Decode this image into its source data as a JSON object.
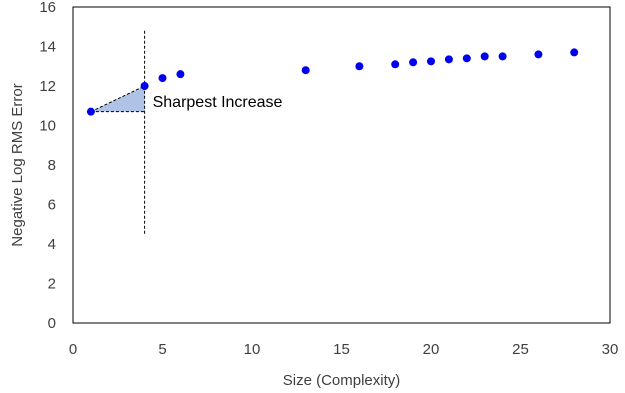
{
  "chart_data": {
    "type": "scatter",
    "xlabel": "Size (Complexity)",
    "ylabel": "Negative Log RMS Error",
    "xlim": [
      0,
      30
    ],
    "ylim": [
      0,
      16
    ],
    "xticks": [
      0,
      5,
      10,
      15,
      20,
      25,
      30
    ],
    "yticks": [
      0,
      2,
      4,
      6,
      8,
      10,
      12,
      14,
      16
    ],
    "grid": false,
    "legend": "none",
    "marker_color": "#0000ee",
    "points": [
      {
        "x": 1,
        "y": 10.7
      },
      {
        "x": 4,
        "y": 12.0
      },
      {
        "x": 5,
        "y": 12.4
      },
      {
        "x": 6,
        "y": 12.6
      },
      {
        "x": 13,
        "y": 12.8
      },
      {
        "x": 16,
        "y": 13.0
      },
      {
        "x": 18,
        "y": 13.1
      },
      {
        "x": 19,
        "y": 13.2
      },
      {
        "x": 20,
        "y": 13.25
      },
      {
        "x": 21,
        "y": 13.35
      },
      {
        "x": 22,
        "y": 13.4
      },
      {
        "x": 23,
        "y": 13.5
      },
      {
        "x": 24,
        "y": 13.5
      },
      {
        "x": 26,
        "y": 13.6
      },
      {
        "x": 28,
        "y": 13.7
      }
    ],
    "annotation": {
      "text": "Sharpest Increase",
      "triangle": {
        "x1": 1,
        "y1": 10.7,
        "x2": 4,
        "y2": 12.0
      },
      "fill_color": "#aec3e6",
      "vline": {
        "x": 4,
        "y_from": 4.5,
        "y_to": 14.8
      }
    }
  }
}
